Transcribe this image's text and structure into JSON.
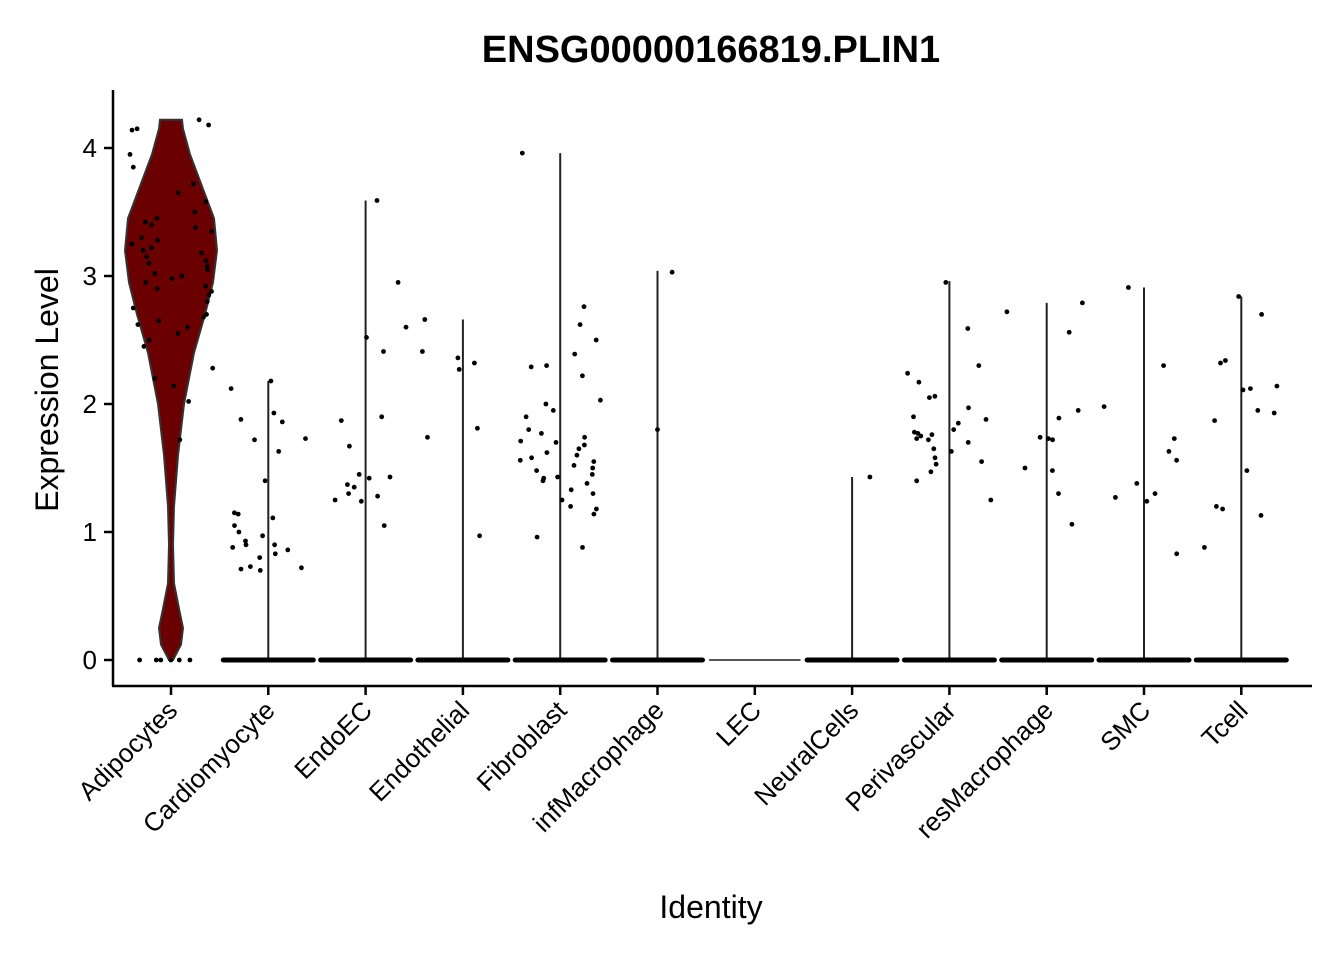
{
  "chart_data": {
    "type": "violin",
    "title": "ENSG00000166819.PLIN1",
    "xlabel": "Identity",
    "ylabel": "Expression Level",
    "ylim": [
      -0.2,
      4.4
    ],
    "yticks": [
      0,
      1,
      2,
      3,
      4
    ],
    "grid": false,
    "legend": "none",
    "fill_color": "#6b0000",
    "categories": [
      "Adipocytes",
      "Cardiomyocyte",
      "EndoEC",
      "Endothelial",
      "Fibroblast",
      "infMacrophage",
      "LEC",
      "NeuralCells",
      "Perivascular",
      "resMacrophage",
      "SMC",
      "Tcell"
    ],
    "groups": [
      {
        "name": "Adipocytes",
        "max": 4.22,
        "points": [
          4.15,
          4.22,
          4.18,
          4.14,
          3.95,
          3.85,
          3.72,
          3.65,
          3.58,
          3.5,
          3.45,
          3.42,
          3.4,
          3.38,
          3.35,
          3.3,
          3.28,
          3.25,
          3.22,
          3.2,
          3.18,
          3.15,
          3.12,
          3.1,
          3.08,
          3.05,
          3.02,
          3.0,
          2.98,
          2.95,
          2.92,
          2.9,
          2.88,
          2.85,
          2.8,
          2.75,
          2.7,
          2.68,
          2.65,
          2.62,
          2.6,
          2.55,
          2.5,
          2.45,
          2.28,
          2.2,
          2.14,
          2.02,
          1.72,
          0,
          0,
          0,
          0,
          0,
          0
        ]
      },
      {
        "name": "Cardiomyocyte",
        "max": 2.18,
        "points": [
          2.18,
          2.12,
          1.93,
          1.88,
          1.86,
          1.73,
          1.72,
          1.63,
          1.4,
          1.15,
          1.14,
          1.11,
          1.05,
          1.0,
          0.97,
          0.93,
          0.9,
          0.9,
          0.88,
          0.86,
          0.83,
          0.8,
          0.73,
          0.72,
          0.71,
          0.7
        ]
      },
      {
        "name": "EndoEC",
        "max": 3.59,
        "points": [
          3.59,
          2.95,
          2.6,
          2.52,
          2.41,
          1.9,
          1.87,
          1.67,
          1.45,
          1.43,
          1.42,
          1.37,
          1.35,
          1.3,
          1.28,
          1.25,
          1.24,
          1.05
        ]
      },
      {
        "name": "Endothelial",
        "max": 2.66,
        "points": [
          2.66,
          2.41,
          2.36,
          2.32,
          2.27,
          1.81,
          1.74,
          0.97
        ]
      },
      {
        "name": "Fibroblast",
        "max": 3.96,
        "points": [
          3.96,
          2.76,
          2.62,
          2.5,
          2.39,
          2.3,
          2.29,
          2.22,
          2.03,
          2.0,
          1.95,
          1.9,
          1.8,
          1.77,
          1.74,
          1.71,
          1.7,
          1.68,
          1.65,
          1.62,
          1.6,
          1.58,
          1.56,
          1.55,
          1.52,
          1.5,
          1.48,
          1.45,
          1.43,
          1.42,
          1.4,
          1.38,
          1.33,
          1.3,
          1.25,
          1.2,
          1.18,
          1.14,
          0.96,
          0.88
        ]
      },
      {
        "name": "infMacrophage",
        "max": 3.04,
        "points": [
          3.03,
          1.8
        ]
      },
      {
        "name": "LEC",
        "max": 0,
        "points": []
      },
      {
        "name": "NeuralCells",
        "max": 1.43,
        "points": [
          1.43
        ]
      },
      {
        "name": "Perivascular",
        "max": 2.96,
        "points": [
          2.95,
          2.59,
          2.3,
          2.24,
          2.17,
          2.06,
          2.05,
          1.97,
          1.9,
          1.88,
          1.85,
          1.8,
          1.78,
          1.77,
          1.76,
          1.75,
          1.73,
          1.72,
          1.7,
          1.65,
          1.63,
          1.58,
          1.55,
          1.53,
          1.47,
          1.4,
          1.25
        ]
      },
      {
        "name": "resMacrophage",
        "max": 2.79,
        "points": [
          2.79,
          2.72,
          2.56,
          1.95,
          1.89,
          1.74,
          1.73,
          1.72,
          1.5,
          1.48,
          1.3,
          1.06
        ]
      },
      {
        "name": "SMC",
        "max": 2.91,
        "points": [
          2.91,
          2.3,
          1.98,
          1.73,
          1.63,
          1.56,
          1.38,
          1.3,
          1.27,
          1.24,
          0.83
        ]
      },
      {
        "name": "Tcell",
        "max": 2.84,
        "points": [
          2.84,
          2.7,
          2.34,
          2.32,
          2.14,
          2.12,
          2.11,
          1.95,
          1.93,
          1.87,
          1.48,
          1.2,
          1.18,
          1.13,
          0.88
        ]
      }
    ]
  }
}
